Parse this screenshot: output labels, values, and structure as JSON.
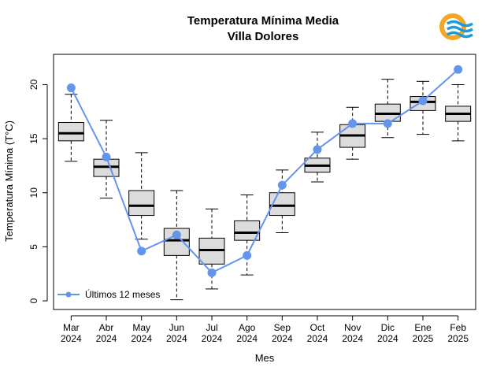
{
  "chart_data": {
    "type": "boxplot",
    "title": "Temperatura Mínima Media",
    "subtitle": "Villa Dolores",
    "xlabel": "Mes",
    "ylabel": "Temperatura Mínima (T°C)",
    "ylim": [
      -0.8,
      22.8
    ],
    "yticks": [
      0,
      5,
      10,
      15,
      20
    ],
    "grid": false,
    "legend_position": "bottom-left",
    "categories": [
      [
        "Mar",
        "2024"
      ],
      [
        "Abr",
        "2024"
      ],
      [
        "May",
        "2024"
      ],
      [
        "Jun",
        "2024"
      ],
      [
        "Jul",
        "2024"
      ],
      [
        "Ago",
        "2024"
      ],
      [
        "Sep",
        "2024"
      ],
      [
        "Oct",
        "2024"
      ],
      [
        "Nov",
        "2024"
      ],
      [
        "Dic",
        "2024"
      ],
      [
        "Ene",
        "2025"
      ],
      [
        "Feb",
        "2025"
      ]
    ],
    "boxes": [
      {
        "whisker_low": 12.9,
        "q1": 14.8,
        "median": 15.5,
        "q3": 16.5,
        "whisker_high": 19.1
      },
      {
        "whisker_low": 9.5,
        "q1": 11.5,
        "median": 12.4,
        "q3": 13.1,
        "whisker_high": 16.7
      },
      {
        "whisker_low": 5.7,
        "q1": 7.9,
        "median": 8.8,
        "q3": 10.2,
        "whisker_high": 13.7
      },
      {
        "whisker_low": 0.1,
        "q1": 4.2,
        "median": 5.6,
        "q3": 6.7,
        "whisker_high": 10.2
      },
      {
        "whisker_low": 1.1,
        "q1": 3.4,
        "median": 4.7,
        "q3": 5.8,
        "whisker_high": 8.5
      },
      {
        "whisker_low": 2.4,
        "q1": 5.6,
        "median": 6.3,
        "q3": 7.4,
        "whisker_high": 9.8
      },
      {
        "whisker_low": 6.3,
        "q1": 7.9,
        "median": 8.8,
        "q3": 10.0,
        "whisker_high": 12.1
      },
      {
        "whisker_low": 11.0,
        "q1": 11.9,
        "median": 12.5,
        "q3": 13.2,
        "whisker_high": 15.6
      },
      {
        "whisker_low": 13.1,
        "q1": 14.2,
        "median": 15.3,
        "q3": 16.3,
        "whisker_high": 17.9
      },
      {
        "whisker_low": 15.1,
        "q1": 16.6,
        "median": 17.3,
        "q3": 18.2,
        "whisker_high": 20.5
      },
      {
        "whisker_low": 15.4,
        "q1": 17.6,
        "median": 18.4,
        "q3": 18.9,
        "whisker_high": 20.3
      },
      {
        "whisker_low": 14.8,
        "q1": 16.6,
        "median": 17.3,
        "q3": 18.0,
        "whisker_high": 20.0
      }
    ],
    "series": [
      {
        "name": "Últimos 12 meses",
        "color": "#6495ED",
        "values": [
          19.7,
          13.3,
          4.6,
          6.1,
          2.6,
          4.2,
          10.7,
          14.0,
          16.4,
          16.4,
          18.5,
          21.4
        ]
      }
    ],
    "box_fill_color": "#DCDCDC"
  },
  "logo": {
    "icon": "weather-service-logo-icon",
    "colors": {
      "sun": "#F5A623",
      "waves": "#1E9BD7"
    }
  }
}
